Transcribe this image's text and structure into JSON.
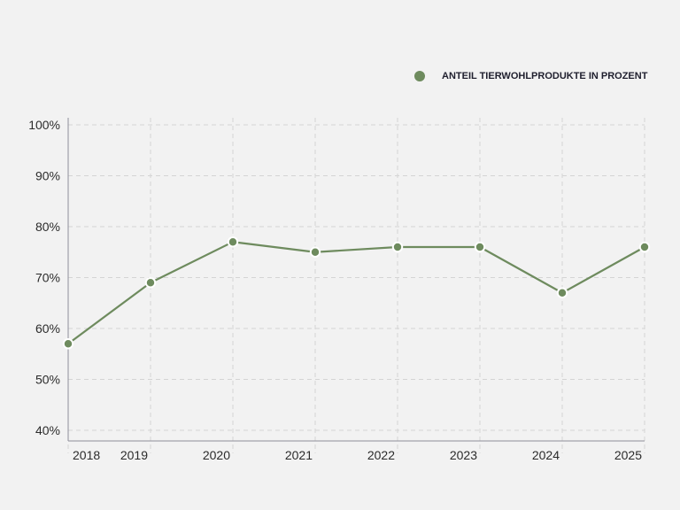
{
  "chart_data": {
    "type": "line",
    "title": "",
    "xlabel": "",
    "ylabel": "",
    "x": [
      2018,
      2019,
      2020,
      2021,
      2022,
      2023,
      2024,
      2025
    ],
    "series": [
      {
        "name": "ANTEIL TIERWOHLPRODUKTE IN PROZENT",
        "values": [
          57,
          69,
          77,
          75,
          76,
          76,
          67,
          76
        ],
        "color": "#6e8b5e"
      }
    ],
    "ylim": [
      38,
      100
    ],
    "yticks": [
      40,
      50,
      60,
      70,
      80,
      90,
      100
    ],
    "ytick_labels": [
      "40%",
      "50%",
      "60%",
      "70%",
      "80%",
      "90%",
      "100%"
    ],
    "xtick_labels": [
      "2018",
      "2019",
      "2020",
      "2021",
      "2022",
      "2023",
      "2024",
      "2025"
    ],
    "grid": true,
    "legend_position": "top-right"
  },
  "colors": {
    "background": "#f2f2f2",
    "series": "#6e8b5e",
    "grid": "#d4d4d4",
    "axis": "#8f8f9a",
    "text": "#2b2b2b"
  }
}
